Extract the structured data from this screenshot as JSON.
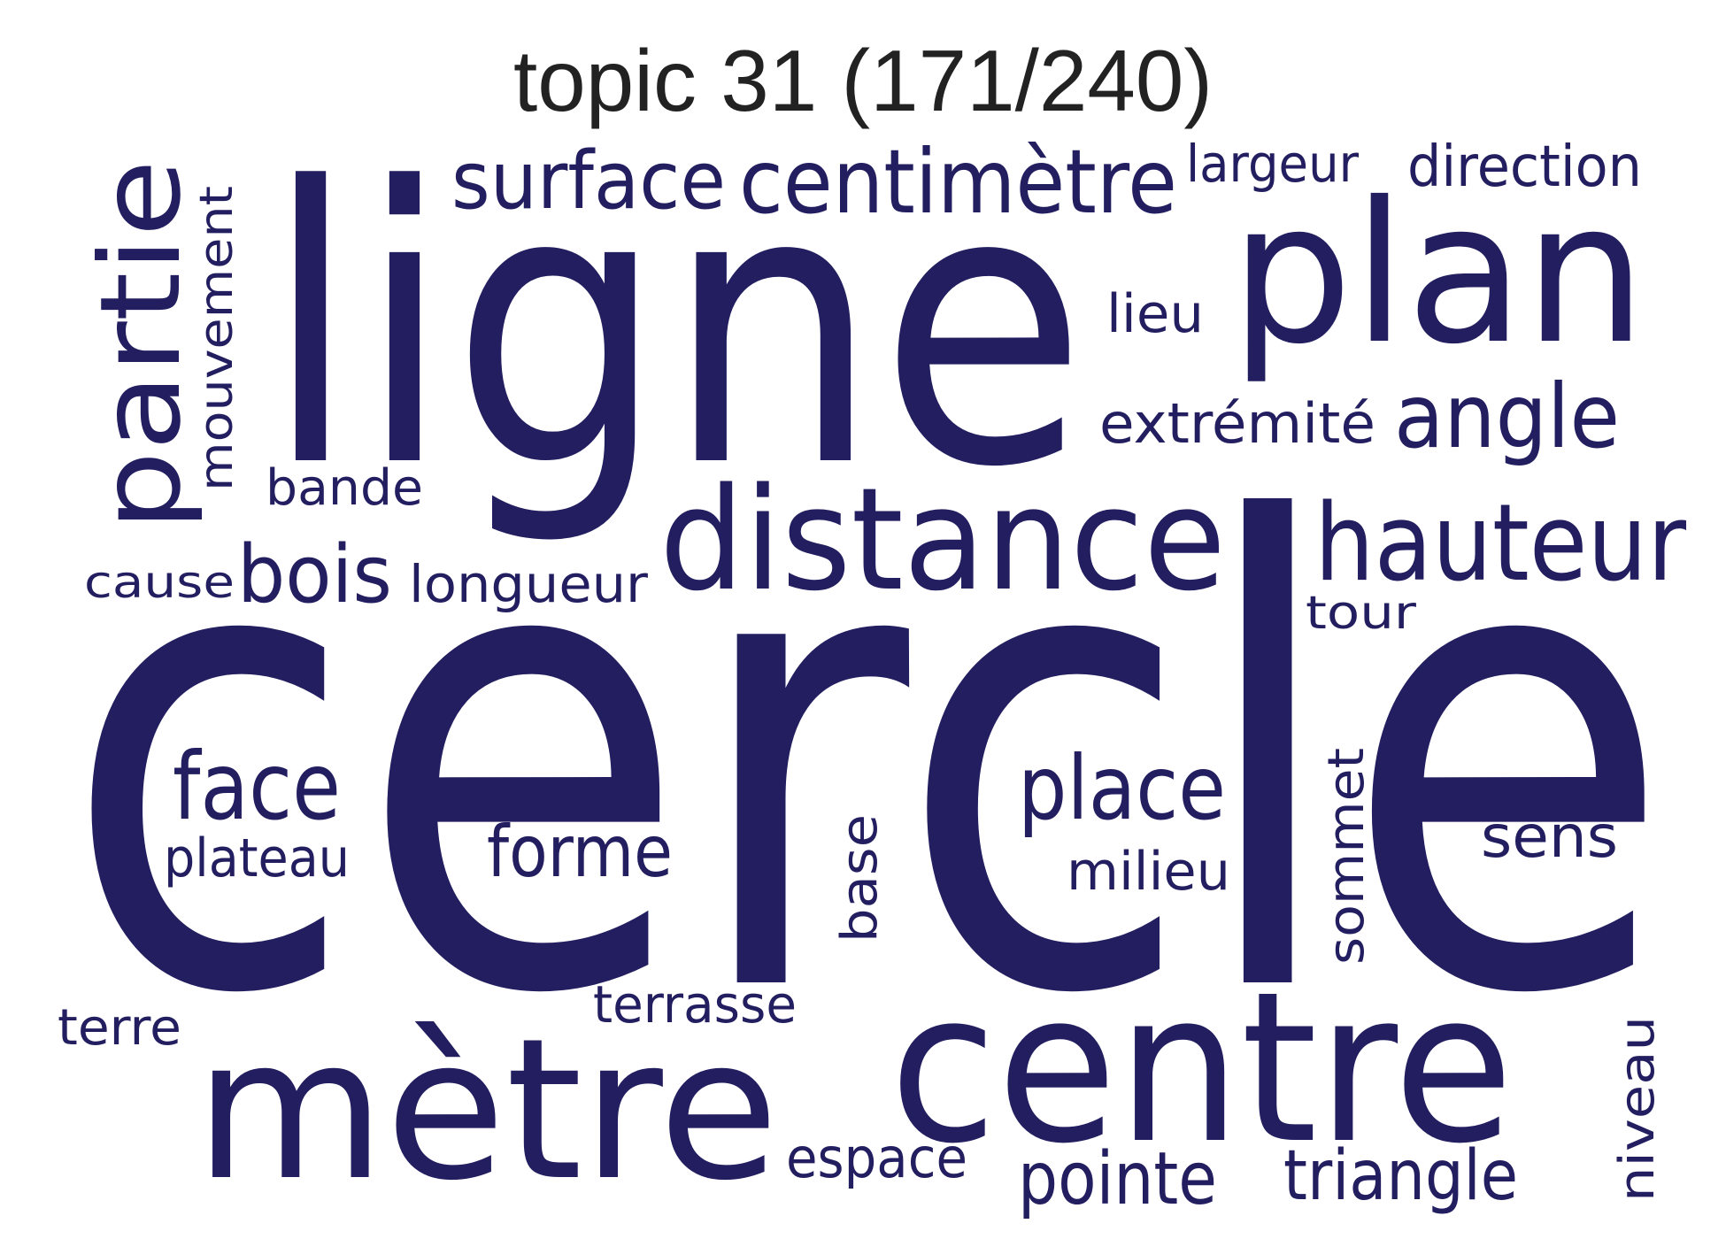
{
  "title": "topic 31 (171/240)",
  "word_color": "#221e60",
  "words": [
    {
      "text": "cercle"
    },
    {
      "text": "ligne"
    },
    {
      "text": "centre"
    },
    {
      "text": "mètre"
    },
    {
      "text": "plan"
    },
    {
      "text": "distance"
    },
    {
      "text": "partie"
    },
    {
      "text": "hauteur"
    },
    {
      "text": "centimètre"
    },
    {
      "text": "place"
    },
    {
      "text": "surface"
    },
    {
      "text": "face"
    },
    {
      "text": "angle"
    },
    {
      "text": "bois"
    },
    {
      "text": "forme"
    },
    {
      "text": "triangle"
    },
    {
      "text": "pointe"
    },
    {
      "text": "direction"
    },
    {
      "text": "sommet"
    },
    {
      "text": "longueur"
    },
    {
      "text": "milieu"
    },
    {
      "text": "extrémité"
    },
    {
      "text": "mouvement"
    },
    {
      "text": "terrasse"
    },
    {
      "text": "base"
    },
    {
      "text": "espace"
    },
    {
      "text": "sens"
    },
    {
      "text": "largeur"
    },
    {
      "text": "plateau"
    },
    {
      "text": "niveau"
    },
    {
      "text": "lieu"
    },
    {
      "text": "bande"
    },
    {
      "text": "cause"
    },
    {
      "text": "terre"
    },
    {
      "text": "tour"
    }
  ]
}
